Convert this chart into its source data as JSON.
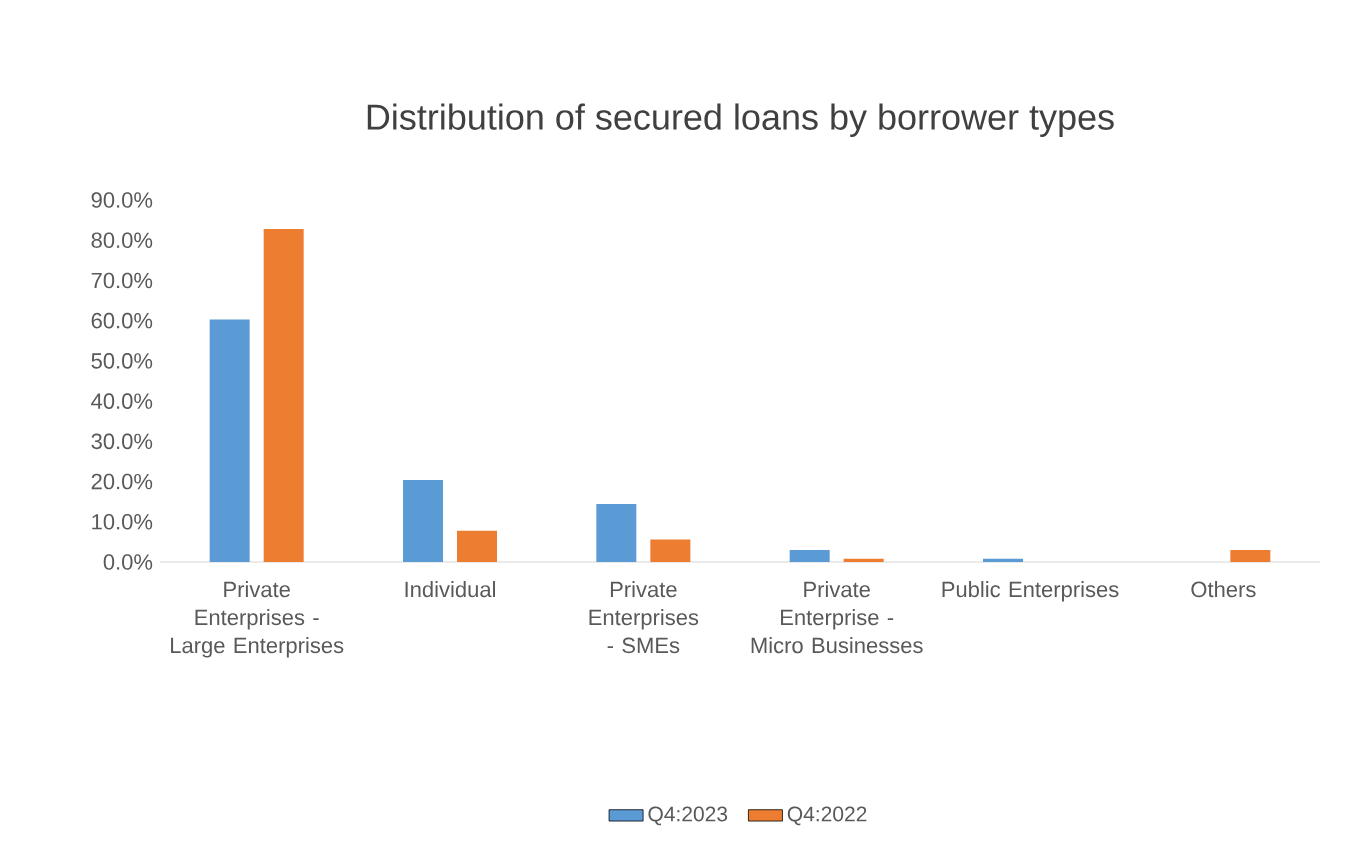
{
  "chart_data": {
    "type": "bar",
    "title": "Distribution of secured loans by borrower types",
    "categories": [
      "Private Enterprises - Large Enterprises",
      "Individual",
      "Private Enterprises - SMEs",
      "Private Enterprise - Micro Businesses",
      "Public Enterprises",
      "Others"
    ],
    "series": [
      {
        "name": "Q4:2023",
        "color": "#5b9bd5",
        "values": [
          60.3,
          20.4,
          14.4,
          3.0,
          0.8,
          0
        ]
      },
      {
        "name": "Q4:2022",
        "color": "#ed7d31",
        "values": [
          82.8,
          7.8,
          5.6,
          0.8,
          0,
          3.0
        ]
      }
    ],
    "ylim": [
      0,
      90
    ],
    "yticks": [
      {
        "value": 0,
        "label": "0.0%"
      },
      {
        "value": 10,
        "label": "10.0%"
      },
      {
        "value": 20,
        "label": "20.0%"
      },
      {
        "value": 30,
        "label": "30.0%"
      },
      {
        "value": 40,
        "label": "40.0%"
      },
      {
        "value": 50,
        "label": "50.0%"
      },
      {
        "value": 60,
        "label": "60.0%"
      },
      {
        "value": 70,
        "label": "70.0%"
      },
      {
        "value": 80,
        "label": "80.0%"
      },
      {
        "value": 90,
        "label": "90.0%"
      }
    ],
    "legend": "bottom"
  }
}
